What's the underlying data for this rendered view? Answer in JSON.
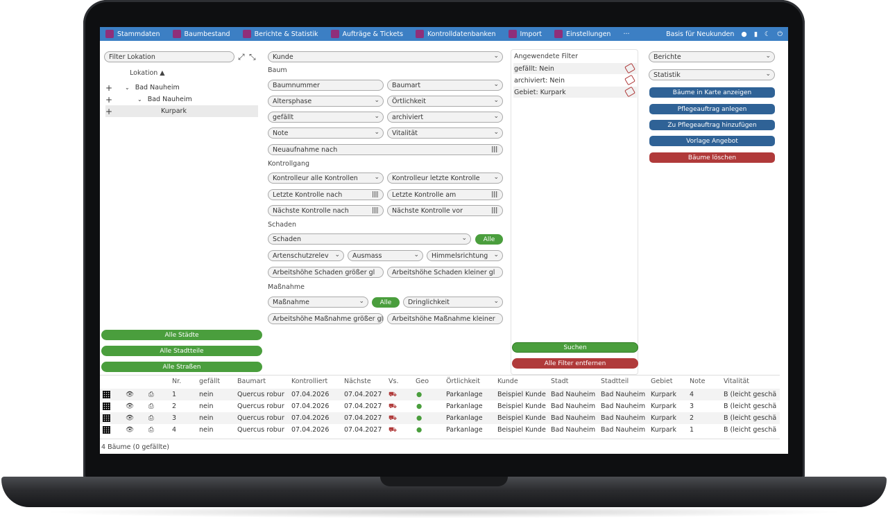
{
  "nav": {
    "items": [
      "Stammdaten",
      "Baumbestand",
      "Berichte & Statistik",
      "Aufträge & Tickets",
      "Kontrolldatenbanken",
      "Import",
      "Einstellungen",
      "···"
    ],
    "user_label": "Basis für Neukunden"
  },
  "left": {
    "filter_placeholder": "Filter Lokation",
    "col_header": "Lokation ▲",
    "tree": [
      "Bad Nauheim",
      "Bad Nauheim",
      "Kurpark"
    ],
    "buttons": [
      "Alle Städte",
      "Alle Stadtteile",
      "Alle Straßen"
    ]
  },
  "mid": {
    "kunde": "Kunde",
    "baum_title": "Baum",
    "baumnummer": "Baumnummer",
    "baumart": "Baumart",
    "altersphase": "Altersphase",
    "oertlichkeit": "Örtlichkeit",
    "gefaellt": "gefällt",
    "archiviert": "archiviert",
    "note": "Note",
    "vitalitaet": "Vitalität",
    "neuaufnahme": "Neuaufnahme nach",
    "kontrollgang_title": "Kontrollgang",
    "kontrolleur_alle": "Kontrolleur alle Kontrollen",
    "kontrolleur_letzte": "Kontrolleur letzte Kontrolle",
    "letzte_nach": "Letzte Kontrolle nach",
    "letzte_am": "Letzte Kontrolle am",
    "naechste_nach": "Nächste Kontrolle nach",
    "naechste_vor": "Nächste Kontrolle vor",
    "schaden_title": "Schaden",
    "schaden": "Schaden",
    "alle": "Alle",
    "artenschutz": "Artenschutzrelev",
    "ausmass": "Ausmass",
    "himmelsrichtung": "Himmelsrichtung",
    "ah_schaden_gr": "Arbeitshöhe Schaden größer gl",
    "ah_schaden_kl": "Arbeitshöhe Schaden kleiner gl",
    "massnahme_title": "Maßnahme",
    "massnahme": "Maßnahme",
    "dringlichkeit": "Dringlichkeit",
    "ah_mass_gr": "Arbeitshöhe Maßnahme größer gle",
    "ah_mass_kl": "Arbeitshöhe Maßnahme kleiner"
  },
  "applied": {
    "title": "Angewendete Filter",
    "rows": [
      "gefällt: Nein",
      "archiviert: Nein",
      "Gebiet: Kurpark"
    ],
    "search": "Suchen",
    "clear": "Alle Filter entfernen"
  },
  "right": {
    "berichte": "Berichte",
    "statistik": "Statistik",
    "buttons": [
      "Bäume in Karte anzeigen",
      "Pflegeauftrag anlegen",
      "Zu Pflegeauftrag hinzufügen",
      "Vorlage Angebot"
    ],
    "delete": "Bäume löschen"
  },
  "table": {
    "headers": [
      "Nr.",
      "gefällt",
      "Baumart",
      "Kontrolliert",
      "Nächste",
      "Vs.",
      "Geo",
      "Örtlichkeit",
      "Kunde",
      "Stadt",
      "Stadtteil",
      "Gebiet",
      "Note",
      "Vitalität"
    ],
    "rows": [
      [
        "1",
        "nein",
        "Quercus robur",
        "07.04.2026",
        "07.04.2027",
        "Parkanlage",
        "Beispiel Kunde",
        "Bad Nauheim",
        "Bad Nauheim",
        "Kurpark",
        "4",
        "B (leicht geschä"
      ],
      [
        "2",
        "nein",
        "Quercus robur",
        "07.04.2026",
        "07.04.2027",
        "Parkanlage",
        "Beispiel Kunde",
        "Bad Nauheim",
        "Bad Nauheim",
        "Kurpark",
        "3",
        "B (leicht geschä"
      ],
      [
        "3",
        "nein",
        "Quercus robur",
        "07.04.2026",
        "07.04.2027",
        "Parkanlage",
        "Beispiel Kunde",
        "Bad Nauheim",
        "Bad Nauheim",
        "Kurpark",
        "2",
        "B (leicht geschä"
      ],
      [
        "4",
        "nein",
        "Quercus robur",
        "07.04.2026",
        "07.04.2027",
        "Parkanlage",
        "Beispiel Kunde",
        "Bad Nauheim",
        "Bad Nauheim",
        "Kurpark",
        "1",
        "B (leicht geschä"
      ]
    ],
    "footer": "4 Bäume (0 gefällte)"
  },
  "colors": {
    "nav": "#3c7fc4",
    "green": "#4a9e3d",
    "blue": "#2f6296",
    "red": "#b03a3a"
  }
}
